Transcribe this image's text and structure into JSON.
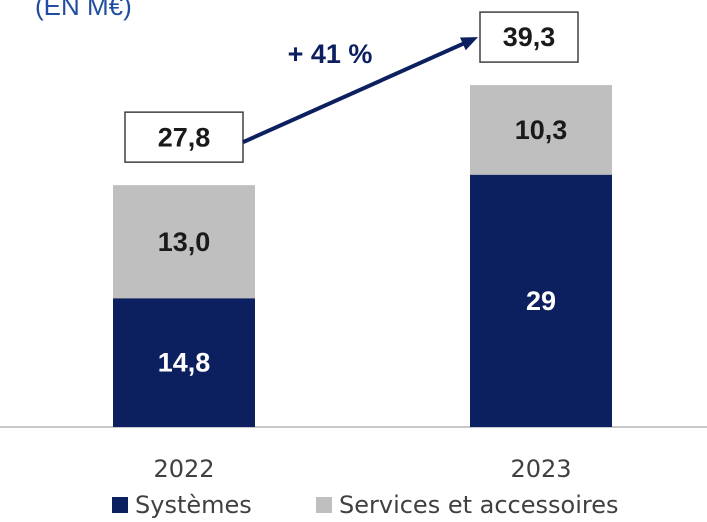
{
  "chart_data": {
    "type": "stacked_bar",
    "title": "(EN M€)",
    "categories": [
      "2022",
      "2023"
    ],
    "series": [
      {
        "name": "Systèmes",
        "color": "#0c1f5e",
        "values": [
          14.8,
          29
        ],
        "value_labels": [
          "14,8",
          "29"
        ]
      },
      {
        "name": "Services et accessoires",
        "color": "#bfbfbf",
        "values": [
          13.0,
          10.3
        ],
        "value_labels": [
          "13,0",
          "10,3"
        ]
      }
    ],
    "totals": [
      27.8,
      39.3
    ],
    "total_labels": [
      "27,8",
      "39,3"
    ],
    "growth_label": "+ 41 %"
  }
}
